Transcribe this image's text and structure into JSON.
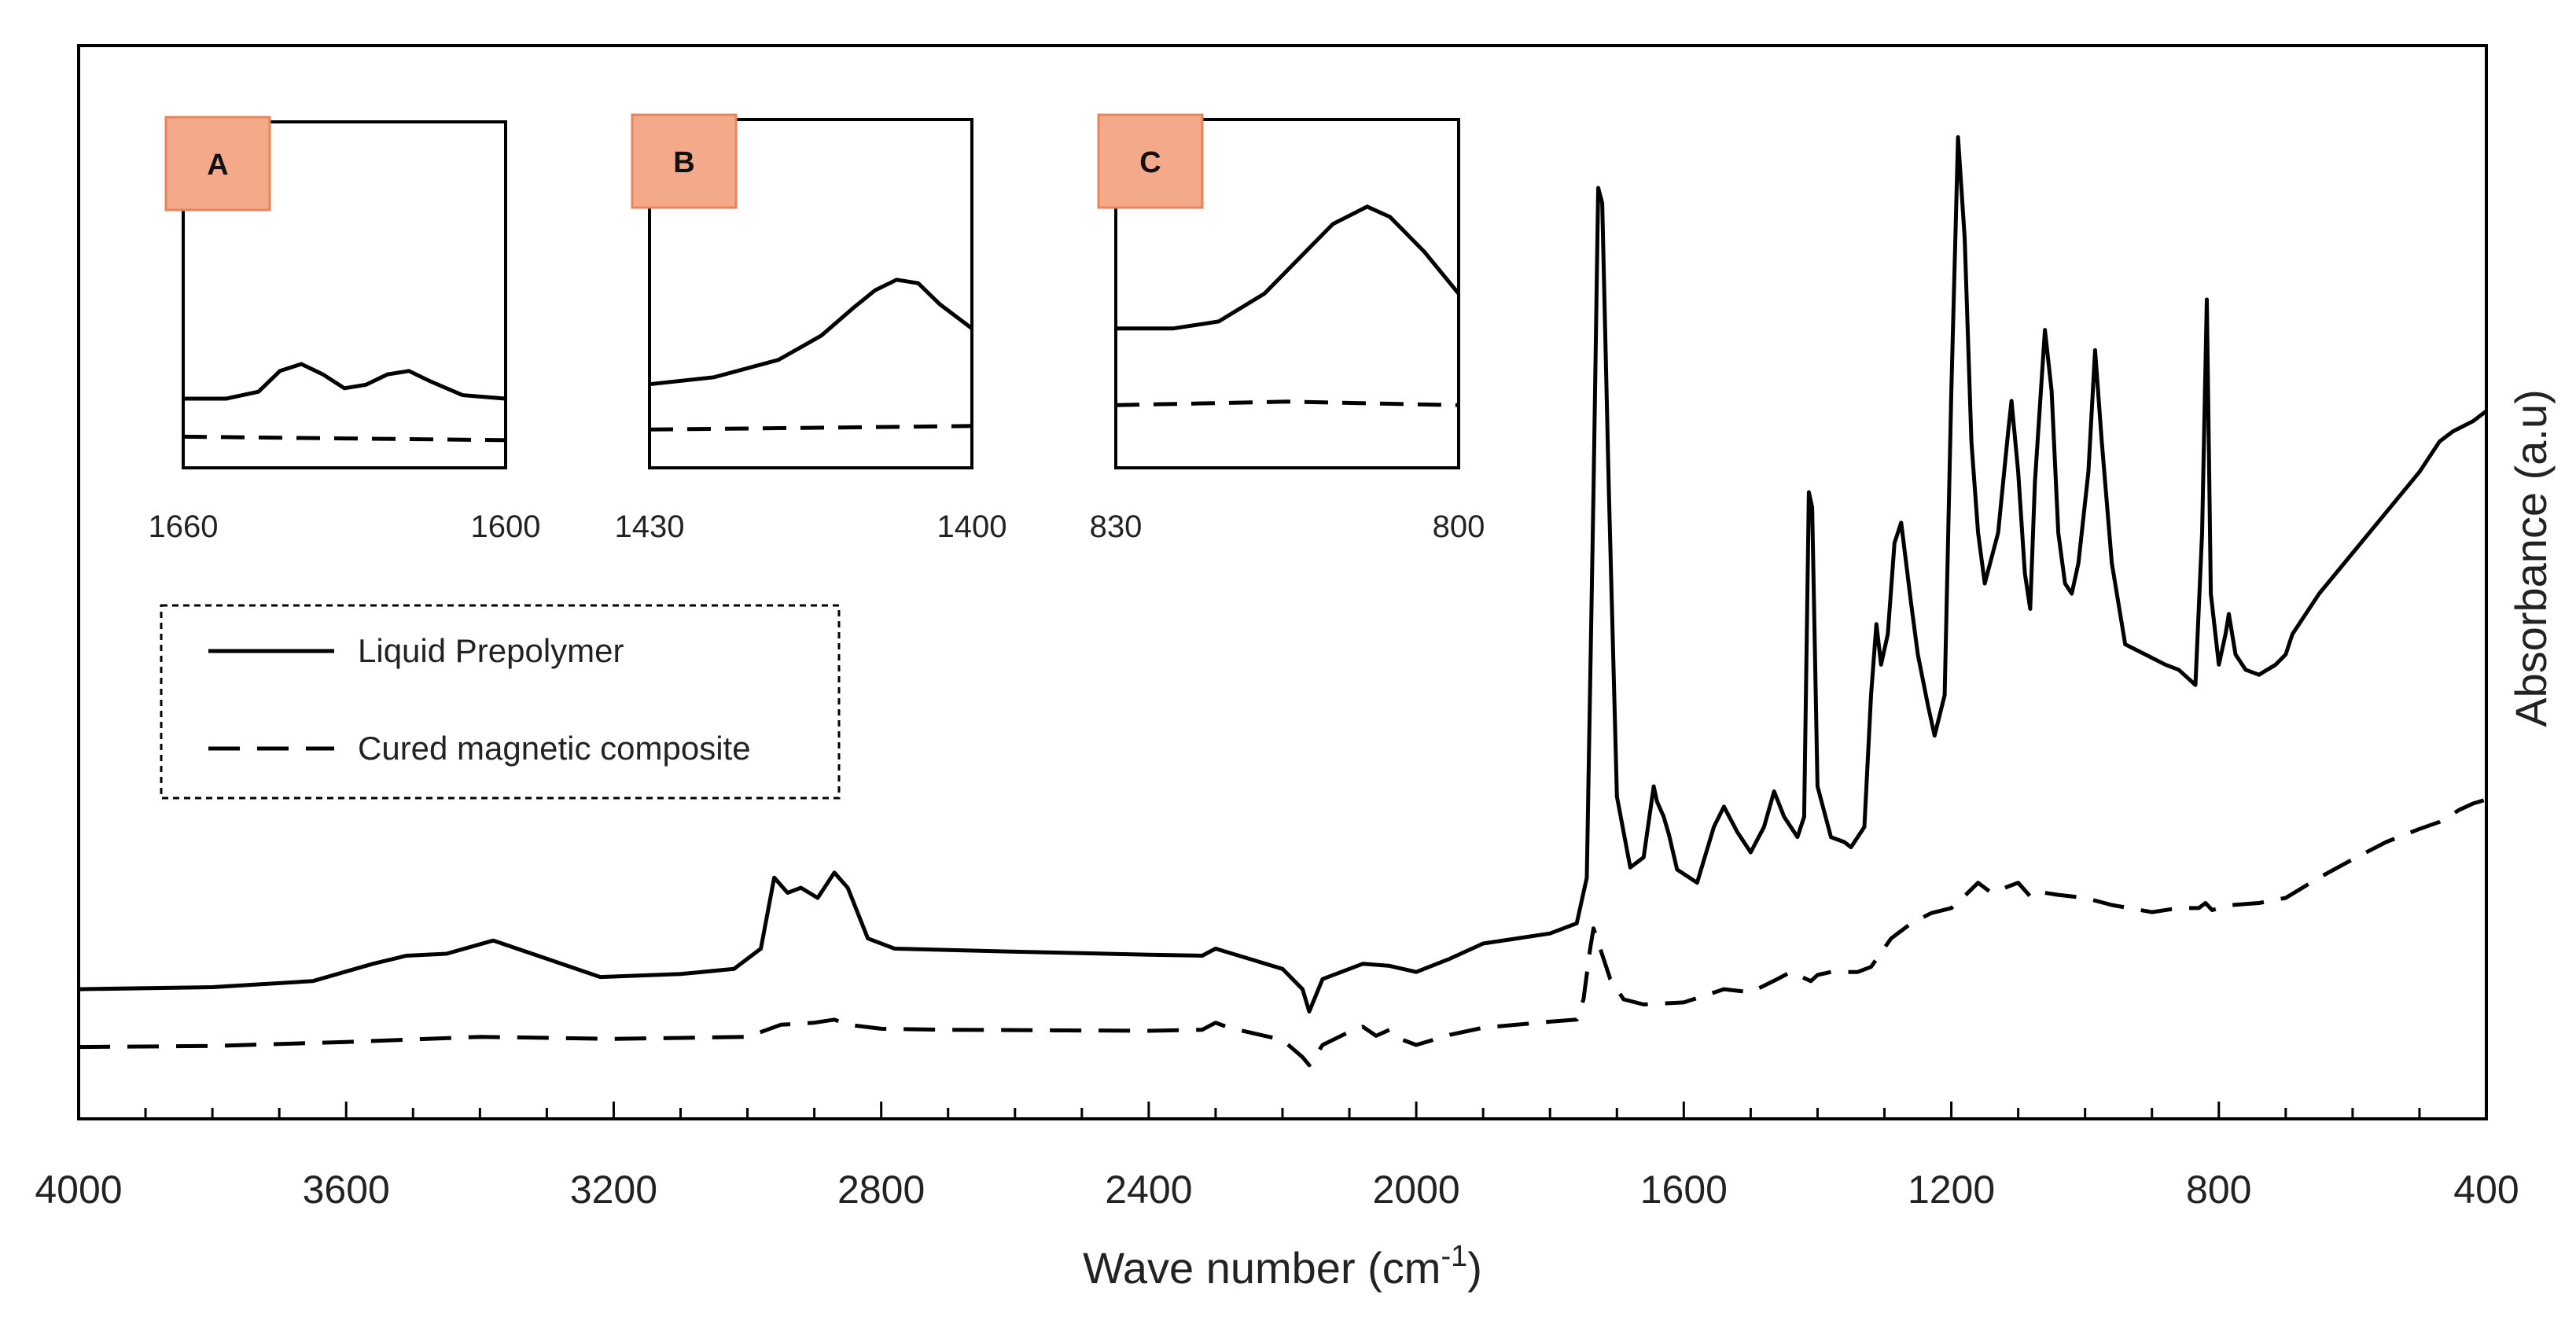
{
  "chart_data": {
    "type": "line",
    "xlabel": "Wave number (cm",
    "xlabel_sup": "-1",
    "xlabel_close": ")",
    "ylabel": "Absorbance (a.u)",
    "xlim": [
      4000,
      400
    ],
    "x_reversed": true,
    "x_ticks": [
      "4000",
      "3600",
      "3200",
      "2800",
      "2400",
      "2000",
      "1600",
      "1200",
      "800",
      "400"
    ],
    "y_units": "a.u.",
    "series": [
      {
        "name": "Liquid Prepolymer",
        "style": "solid",
        "points": [
          [
            4000,
            0.11
          ],
          [
            3800,
            0.112
          ],
          [
            3650,
            0.118
          ],
          [
            3560,
            0.135
          ],
          [
            3510,
            0.143
          ],
          [
            3450,
            0.145
          ],
          [
            3380,
            0.158
          ],
          [
            3300,
            0.14
          ],
          [
            3220,
            0.122
          ],
          [
            3100,
            0.125
          ],
          [
            3020,
            0.13
          ],
          [
            2980,
            0.15
          ],
          [
            2960,
            0.22
          ],
          [
            2940,
            0.205
          ],
          [
            2920,
            0.21
          ],
          [
            2895,
            0.2
          ],
          [
            2870,
            0.225
          ],
          [
            2850,
            0.21
          ],
          [
            2820,
            0.16
          ],
          [
            2780,
            0.15
          ],
          [
            2600,
            0.147
          ],
          [
            2400,
            0.144
          ],
          [
            2320,
            0.143
          ],
          [
            2300,
            0.15
          ],
          [
            2250,
            0.14
          ],
          [
            2200,
            0.13
          ],
          [
            2170,
            0.11
          ],
          [
            2160,
            0.088
          ],
          [
            2140,
            0.12
          ],
          [
            2080,
            0.135
          ],
          [
            2040,
            0.133
          ],
          [
            2020,
            0.13
          ],
          [
            2000,
            0.127
          ],
          [
            1950,
            0.14
          ],
          [
            1900,
            0.155
          ],
          [
            1800,
            0.165
          ],
          [
            1760,
            0.175
          ],
          [
            1745,
            0.22
          ],
          [
            1735,
            0.6
          ],
          [
            1728,
            0.9
          ],
          [
            1722,
            0.885
          ],
          [
            1712,
            0.6
          ],
          [
            1700,
            0.3
          ],
          [
            1680,
            0.23
          ],
          [
            1660,
            0.24
          ],
          [
            1645,
            0.31
          ],
          [
            1640,
            0.295
          ],
          [
            1630,
            0.28
          ],
          [
            1622,
            0.262
          ],
          [
            1610,
            0.228
          ],
          [
            1580,
            0.215
          ],
          [
            1555,
            0.27
          ],
          [
            1540,
            0.29
          ],
          [
            1520,
            0.265
          ],
          [
            1500,
            0.245
          ],
          [
            1480,
            0.27
          ],
          [
            1465,
            0.305
          ],
          [
            1450,
            0.28
          ],
          [
            1430,
            0.26
          ],
          [
            1420,
            0.28
          ],
          [
            1413,
            0.6
          ],
          [
            1408,
            0.585
          ],
          [
            1400,
            0.31
          ],
          [
            1380,
            0.26
          ],
          [
            1360,
            0.255
          ],
          [
            1350,
            0.25
          ],
          [
            1330,
            0.27
          ],
          [
            1320,
            0.4
          ],
          [
            1312,
            0.47
          ],
          [
            1305,
            0.43
          ],
          [
            1295,
            0.46
          ],
          [
            1285,
            0.55
          ],
          [
            1275,
            0.57
          ],
          [
            1260,
            0.49
          ],
          [
            1250,
            0.44
          ],
          [
            1235,
            0.39
          ],
          [
            1225,
            0.36
          ],
          [
            1210,
            0.4
          ],
          [
            1200,
            0.7
          ],
          [
            1190,
            0.95
          ],
          [
            1180,
            0.85
          ],
          [
            1170,
            0.65
          ],
          [
            1160,
            0.56
          ],
          [
            1150,
            0.51
          ],
          [
            1130,
            0.56
          ],
          [
            1115,
            0.66
          ],
          [
            1110,
            0.69
          ],
          [
            1100,
            0.62
          ],
          [
            1090,
            0.52
          ],
          [
            1082,
            0.485
          ],
          [
            1075,
            0.61
          ],
          [
            1060,
            0.76
          ],
          [
            1050,
            0.7
          ],
          [
            1040,
            0.56
          ],
          [
            1030,
            0.51
          ],
          [
            1020,
            0.5
          ],
          [
            1010,
            0.53
          ],
          [
            995,
            0.62
          ],
          [
            985,
            0.74
          ],
          [
            975,
            0.65
          ],
          [
            960,
            0.53
          ],
          [
            940,
            0.45
          ],
          [
            910,
            0.44
          ],
          [
            880,
            0.43
          ],
          [
            860,
            0.425
          ],
          [
            835,
            0.41
          ],
          [
            825,
            0.56
          ],
          [
            818,
            0.79
          ],
          [
            812,
            0.5
          ],
          [
            800,
            0.43
          ],
          [
            790,
            0.46
          ],
          [
            785,
            0.48
          ],
          [
            775,
            0.44
          ],
          [
            760,
            0.425
          ],
          [
            740,
            0.42
          ],
          [
            715,
            0.43
          ],
          [
            700,
            0.44
          ],
          [
            690,
            0.46
          ],
          [
            680,
            0.47
          ],
          [
            650,
            0.5
          ],
          [
            600,
            0.54
          ],
          [
            550,
            0.58
          ],
          [
            500,
            0.62
          ],
          [
            470,
            0.65
          ],
          [
            450,
            0.66
          ],
          [
            420,
            0.67
          ],
          [
            400,
            0.68
          ]
        ]
      },
      {
        "name": "Cured magnetic composite",
        "style": "dashed",
        "points": [
          [
            4000,
            0.053
          ],
          [
            3800,
            0.054
          ],
          [
            3600,
            0.058
          ],
          [
            3400,
            0.063
          ],
          [
            3200,
            0.061
          ],
          [
            3000,
            0.063
          ],
          [
            2950,
            0.075
          ],
          [
            2900,
            0.077
          ],
          [
            2870,
            0.08
          ],
          [
            2850,
            0.075
          ],
          [
            2800,
            0.071
          ],
          [
            2700,
            0.07
          ],
          [
            2400,
            0.069
          ],
          [
            2320,
            0.07
          ],
          [
            2300,
            0.077
          ],
          [
            2280,
            0.072
          ],
          [
            2200,
            0.06
          ],
          [
            2170,
            0.043
          ],
          [
            2160,
            0.035
          ],
          [
            2140,
            0.055
          ],
          [
            2100,
            0.068
          ],
          [
            2080,
            0.073
          ],
          [
            2060,
            0.064
          ],
          [
            2040,
            0.07
          ],
          [
            2020,
            0.06
          ],
          [
            2000,
            0.055
          ],
          [
            1950,
            0.065
          ],
          [
            1900,
            0.072
          ],
          [
            1800,
            0.078
          ],
          [
            1760,
            0.08
          ],
          [
            1750,
            0.1
          ],
          [
            1740,
            0.15
          ],
          [
            1735,
            0.17
          ],
          [
            1730,
            0.16
          ],
          [
            1710,
            0.12
          ],
          [
            1690,
            0.1
          ],
          [
            1660,
            0.095
          ],
          [
            1600,
            0.097
          ],
          [
            1540,
            0.11
          ],
          [
            1500,
            0.107
          ],
          [
            1460,
            0.12
          ],
          [
            1440,
            0.127
          ],
          [
            1410,
            0.118
          ],
          [
            1400,
            0.124
          ],
          [
            1380,
            0.127
          ],
          [
            1340,
            0.127
          ],
          [
            1320,
            0.132
          ],
          [
            1290,
            0.16
          ],
          [
            1260,
            0.175
          ],
          [
            1230,
            0.185
          ],
          [
            1200,
            0.19
          ],
          [
            1180,
            0.202
          ],
          [
            1160,
            0.215
          ],
          [
            1140,
            0.205
          ],
          [
            1120,
            0.21
          ],
          [
            1100,
            0.215
          ],
          [
            1080,
            0.2
          ],
          [
            1060,
            0.205
          ],
          [
            1040,
            0.203
          ],
          [
            1000,
            0.2
          ],
          [
            960,
            0.193
          ],
          [
            900,
            0.186
          ],
          [
            860,
            0.19
          ],
          [
            830,
            0.19
          ],
          [
            820,
            0.195
          ],
          [
            810,
            0.188
          ],
          [
            800,
            0.19
          ],
          [
            780,
            0.193
          ],
          [
            740,
            0.195
          ],
          [
            700,
            0.2
          ],
          [
            650,
            0.22
          ],
          [
            600,
            0.238
          ],
          [
            550,
            0.255
          ],
          [
            500,
            0.268
          ],
          [
            470,
            0.275
          ],
          [
            440,
            0.287
          ],
          [
            420,
            0.293
          ],
          [
            400,
            0.297
          ]
        ]
      }
    ],
    "legend": {
      "placement": "upper-left",
      "entries": [
        {
          "label": "Liquid Prepolymer",
          "style": "solid"
        },
        {
          "label": "Cured magnetic composite",
          "style": "dashed"
        }
      ]
    },
    "insets": [
      {
        "label": "A",
        "x_range": [
          1660,
          1600
        ],
        "tick_left": "1660",
        "tick_right": "1600",
        "solid": [
          [
            1660,
            0.2
          ],
          [
            1652,
            0.2
          ],
          [
            1646,
            0.22
          ],
          [
            1642,
            0.28
          ],
          [
            1638,
            0.3
          ],
          [
            1634,
            0.27
          ],
          [
            1630,
            0.23
          ],
          [
            1626,
            0.24
          ],
          [
            1622,
            0.27
          ],
          [
            1618,
            0.28
          ],
          [
            1614,
            0.25
          ],
          [
            1608,
            0.21
          ],
          [
            1600,
            0.2
          ]
        ],
        "dashed": [
          [
            1660,
            0.09
          ],
          [
            1630,
            0.085
          ],
          [
            1600,
            0.08
          ]
        ]
      },
      {
        "label": "B",
        "x_range": [
          1430,
          1400
        ],
        "tick_left": "1430",
        "tick_right": "1400",
        "solid": [
          [
            1430,
            0.24
          ],
          [
            1424,
            0.26
          ],
          [
            1418,
            0.31
          ],
          [
            1414,
            0.38
          ],
          [
            1411,
            0.46
          ],
          [
            1409,
            0.51
          ],
          [
            1407,
            0.54
          ],
          [
            1405,
            0.53
          ],
          [
            1403,
            0.47
          ],
          [
            1400,
            0.4
          ]
        ],
        "dashed": [
          [
            1430,
            0.11
          ],
          [
            1415,
            0.115
          ],
          [
            1400,
            0.12
          ]
        ]
      },
      {
        "label": "C",
        "x_range": [
          830,
          800
        ],
        "tick_left": "830",
        "tick_right": "800",
        "solid": [
          [
            830,
            0.4
          ],
          [
            825,
            0.4
          ],
          [
            821,
            0.42
          ],
          [
            817,
            0.5
          ],
          [
            814,
            0.6
          ],
          [
            811,
            0.7
          ],
          [
            808,
            0.75
          ],
          [
            806,
            0.72
          ],
          [
            803,
            0.62
          ],
          [
            800,
            0.5
          ]
        ],
        "dashed": [
          [
            830,
            0.18
          ],
          [
            815,
            0.19
          ],
          [
            800,
            0.18
          ]
        ]
      }
    ],
    "grid": false
  }
}
